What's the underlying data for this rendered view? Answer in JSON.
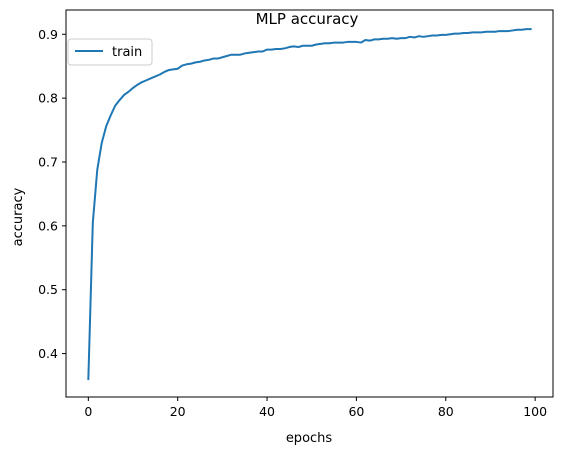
{
  "chart_data": {
    "type": "line",
    "title": "MLP accuracy",
    "xlabel": "epochs",
    "ylabel": "accuracy",
    "xlim": [
      -5,
      104
    ],
    "ylim": [
      0.332,
      0.938
    ],
    "xticks": [
      0,
      20,
      40,
      60,
      80,
      100
    ],
    "yticks": [
      0.4,
      0.5,
      0.6,
      0.7,
      0.8,
      0.9
    ],
    "xtick_labels": [
      "0",
      "20",
      "40",
      "60",
      "80",
      "100"
    ],
    "ytick_labels": [
      "0.4",
      "0.5",
      "0.6",
      "0.7",
      "0.8",
      "0.9"
    ],
    "grid": false,
    "legend": {
      "position": "top-left"
    },
    "series": [
      {
        "name": "train",
        "color": "#1f77b4",
        "x": [
          0,
          1,
          2,
          3,
          4,
          5,
          6,
          7,
          8,
          9,
          10,
          11,
          12,
          13,
          14,
          15,
          16,
          17,
          18,
          19,
          20,
          21,
          22,
          23,
          24,
          25,
          26,
          27,
          28,
          29,
          30,
          31,
          32,
          33,
          34,
          35,
          36,
          37,
          38,
          39,
          40,
          41,
          42,
          43,
          44,
          45,
          46,
          47,
          48,
          49,
          50,
          51,
          52,
          53,
          54,
          55,
          56,
          57,
          58,
          59,
          60,
          61,
          62,
          63,
          64,
          65,
          66,
          67,
          68,
          69,
          70,
          71,
          72,
          73,
          74,
          75,
          76,
          77,
          78,
          79,
          80,
          81,
          82,
          83,
          84,
          85,
          86,
          87,
          88,
          89,
          90,
          91,
          92,
          93,
          94,
          95,
          96,
          97,
          98,
          99
        ],
        "values": [
          0.36,
          0.605,
          0.688,
          0.73,
          0.756,
          0.773,
          0.788,
          0.797,
          0.805,
          0.81,
          0.816,
          0.821,
          0.825,
          0.828,
          0.831,
          0.834,
          0.837,
          0.841,
          0.844,
          0.845,
          0.846,
          0.851,
          0.853,
          0.854,
          0.856,
          0.857,
          0.859,
          0.86,
          0.862,
          0.862,
          0.864,
          0.866,
          0.868,
          0.868,
          0.868,
          0.87,
          0.871,
          0.872,
          0.873,
          0.873,
          0.876,
          0.876,
          0.877,
          0.877,
          0.878,
          0.88,
          0.881,
          0.88,
          0.882,
          0.882,
          0.882,
          0.884,
          0.885,
          0.886,
          0.886,
          0.887,
          0.887,
          0.887,
          0.888,
          0.888,
          0.888,
          0.887,
          0.891,
          0.89,
          0.892,
          0.892,
          0.893,
          0.893,
          0.894,
          0.893,
          0.894,
          0.894,
          0.896,
          0.895,
          0.897,
          0.896,
          0.897,
          0.898,
          0.898,
          0.899,
          0.899,
          0.9,
          0.901,
          0.901,
          0.902,
          0.902,
          0.903,
          0.903,
          0.903,
          0.904,
          0.904,
          0.904,
          0.905,
          0.905,
          0.905,
          0.906,
          0.907,
          0.907,
          0.908,
          0.908
        ]
      }
    ]
  }
}
